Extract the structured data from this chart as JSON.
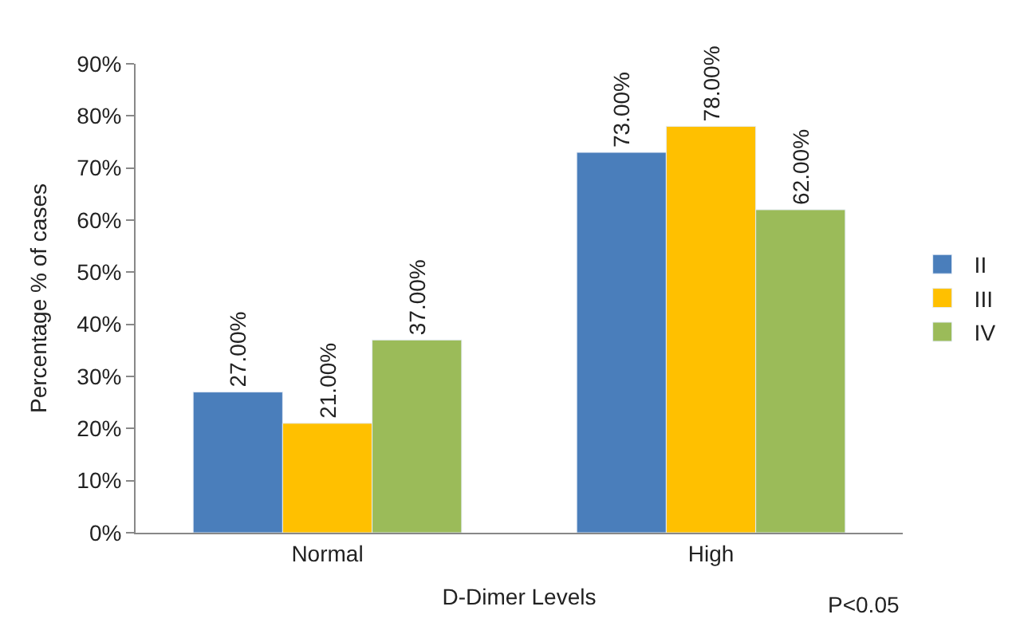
{
  "chart_data": {
    "type": "bar",
    "xlabel": "D-Dimer Levels",
    "ylabel": "Percentage % of cases",
    "categories": [
      "Normal",
      "High"
    ],
    "series": [
      {
        "name": "II",
        "color": "#4a7ebb",
        "values": [
          27,
          73
        ],
        "value_labels": [
          "27.00%",
          "73.00%"
        ]
      },
      {
        "name": "III",
        "color": "#ffc000",
        "values": [
          21,
          78
        ],
        "value_labels": [
          "21.00%",
          "78.00%"
        ]
      },
      {
        "name": "IV",
        "color": "#9bbb59",
        "values": [
          37,
          62
        ],
        "value_labels": [
          "37.00%",
          "62.00%"
        ]
      }
    ],
    "ylim": [
      0,
      90
    ],
    "yticks": [
      {
        "value": 0,
        "label": "0%"
      },
      {
        "value": 10,
        "label": "10%"
      },
      {
        "value": 20,
        "label": "20%"
      },
      {
        "value": 30,
        "label": "30%"
      },
      {
        "value": 40,
        "label": "40%"
      },
      {
        "value": 50,
        "label": "50%"
      },
      {
        "value": 60,
        "label": "60%"
      },
      {
        "value": 70,
        "label": "70%"
      },
      {
        "value": 80,
        "label": "80%"
      },
      {
        "value": 90,
        "label": "90%"
      }
    ],
    "legend": "right",
    "annotations": [
      "P<0.05"
    ]
  }
}
